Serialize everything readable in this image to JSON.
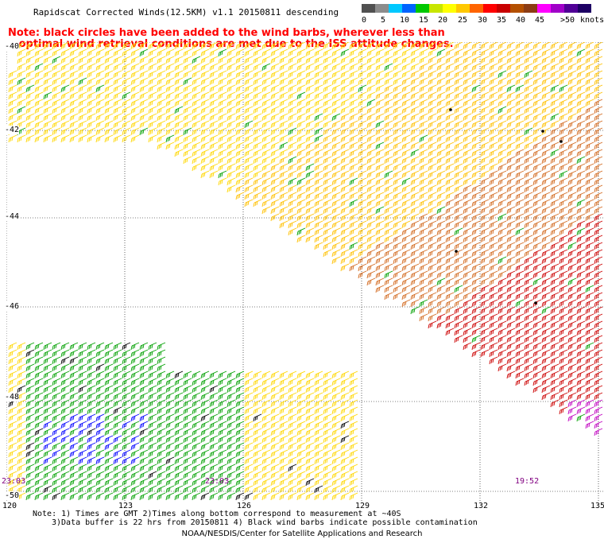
{
  "title": "Rapidscat Corrected Winds(12.5KM) v1.1 20150811 descending",
  "note": {
    "line1": "Note: black circles have been added to the wind barbs, wherever less than",
    "line2": "optimal wind retrieval conditions are met due to the ISS attitude changes."
  },
  "legend": {
    "unit": "knots",
    "ticks": [
      "0",
      "5",
      "10",
      "15",
      "20",
      "25",
      "30",
      "35",
      "40",
      "45",
      ">50"
    ],
    "colors": [
      "#505050",
      "#8c8c8c",
      "#00c8ff",
      "#0064ff",
      "#00c800",
      "#c8e600",
      "#ffff00",
      "#ffc800",
      "#ff6400",
      "#ff0000",
      "#c80000",
      "#b45000",
      "#8c3c14",
      "#ff00ff",
      "#a000c8",
      "#500096",
      "#1e0064"
    ]
  },
  "map": {
    "lon_range": [
      120,
      135
    ],
    "lat_range": [
      -40,
      -50
    ],
    "x_ticks": [
      "120",
      "123",
      "126",
      "129",
      "132",
      "135"
    ],
    "y_ticks": [
      "-40",
      "-42",
      "-44",
      "-46",
      "-48",
      "-50"
    ],
    "grid": true
  },
  "pass_times": [
    {
      "label": "23:03",
      "color": "#800080"
    },
    {
      "label": "23:03",
      "color": "#800080"
    },
    {
      "label": "19:52",
      "color": "#800080"
    }
  ],
  "footnote": {
    "line1": "Note: 1) Times are GMT 2)Times along bottom correspond to measurement at ~40S",
    "line2": "3)Data buffer is 22 hrs from 20150811 4) Black wind barbs indicate possible contamination"
  },
  "credit": "NOAA/NESDIS/Center for Satellite Applications and Research",
  "colors": {
    "calm_green": "#00a000",
    "light_blue": "#0000ff",
    "moderate_yellow": "#ffd700",
    "strong_orange": "#d2691e",
    "very_strong_red": "#cc0000",
    "extreme_magenta": "#c000c0",
    "contamination_black": "#000000"
  }
}
